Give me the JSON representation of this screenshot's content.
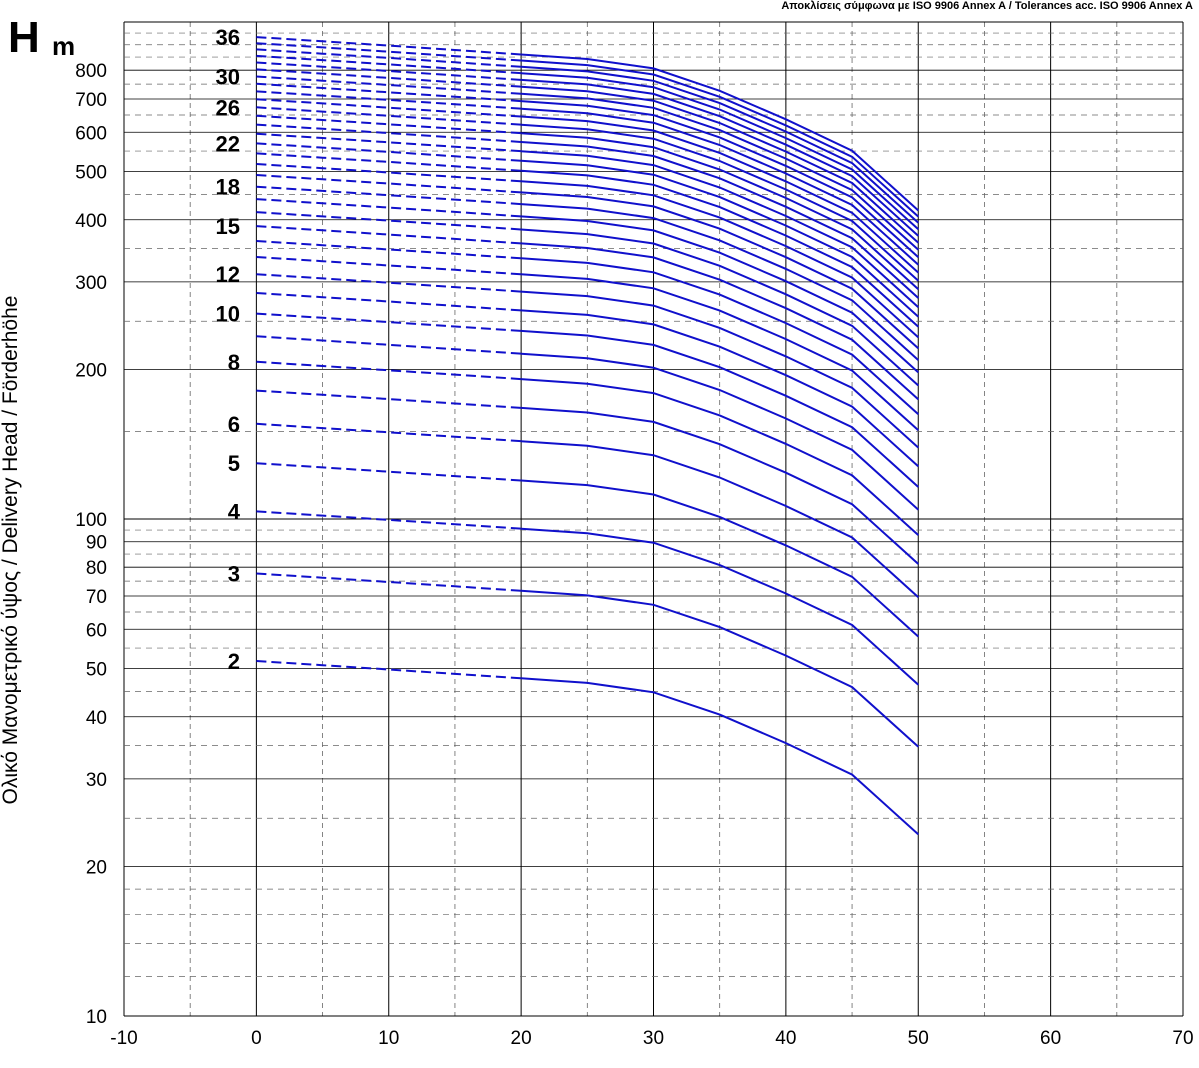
{
  "chart_data": {
    "type": "line",
    "tolerance_note": "Αποκλίσεις σύμφωνα με ISO 9906 Annex A  /  Tolerances  acc. ISO 9906 Annex A",
    "y_symbol": "H",
    "y_unit": "m",
    "ylabel": "Ολικό  Μανομετρικό  ύψος  /  Delivery Head  /  Förderhöhe",
    "xlabel": "",
    "xlim": [
      -10,
      70
    ],
    "ylim": [
      10,
      1000
    ],
    "y_scale": "log",
    "grid": true,
    "x_ticks": [
      "-10",
      "0",
      "10",
      "20",
      "30",
      "40",
      "50",
      "60",
      "70"
    ],
    "y_ticks": [
      {
        "value": 800,
        "label": "800"
      },
      {
        "value": 700,
        "label": "700"
      },
      {
        "value": 600,
        "label": "600"
      },
      {
        "value": 500,
        "label": "500"
      },
      {
        "value": 400,
        "label": "400"
      },
      {
        "value": 300,
        "label": "300"
      },
      {
        "value": 200,
        "label": "200"
      },
      {
        "value": 100,
        "label": "100"
      },
      {
        "value": 90,
        "label": "90"
      },
      {
        "value": 80,
        "label": "80"
      },
      {
        "value": 70,
        "label": "70"
      },
      {
        "value": 60,
        "label": "60"
      },
      {
        "value": 50,
        "label": "50"
      },
      {
        "value": 40,
        "label": "40"
      },
      {
        "value": 30,
        "label": "30"
      },
      {
        "value": 20,
        "label": "20"
      },
      {
        "value": 10,
        "label": "10"
      }
    ],
    "line_color": "#1010cc",
    "dashed_until_x": 20,
    "curve_x": [
      0,
      5,
      10,
      15,
      20,
      25,
      30,
      35,
      40,
      45,
      50
    ],
    "head_per_stage": [
      25.9,
      25.4,
      24.9,
      24.4,
      23.9,
      23.4,
      22.4,
      20.2,
      17.7,
      15.3,
      11.6
    ],
    "stages": [
      2,
      3,
      4,
      5,
      6,
      7,
      8,
      9,
      10,
      11,
      12,
      13,
      14,
      15,
      16,
      17,
      18,
      19,
      20,
      21,
      22,
      23,
      24,
      25,
      26,
      27,
      28,
      29,
      30,
      31,
      32,
      33,
      34,
      35,
      36
    ],
    "labeled_stages": [
      "36",
      "30",
      "26",
      "22",
      "18",
      "15",
      "12",
      "10",
      "8",
      "6",
      "5",
      "4",
      "3",
      "2"
    ]
  }
}
